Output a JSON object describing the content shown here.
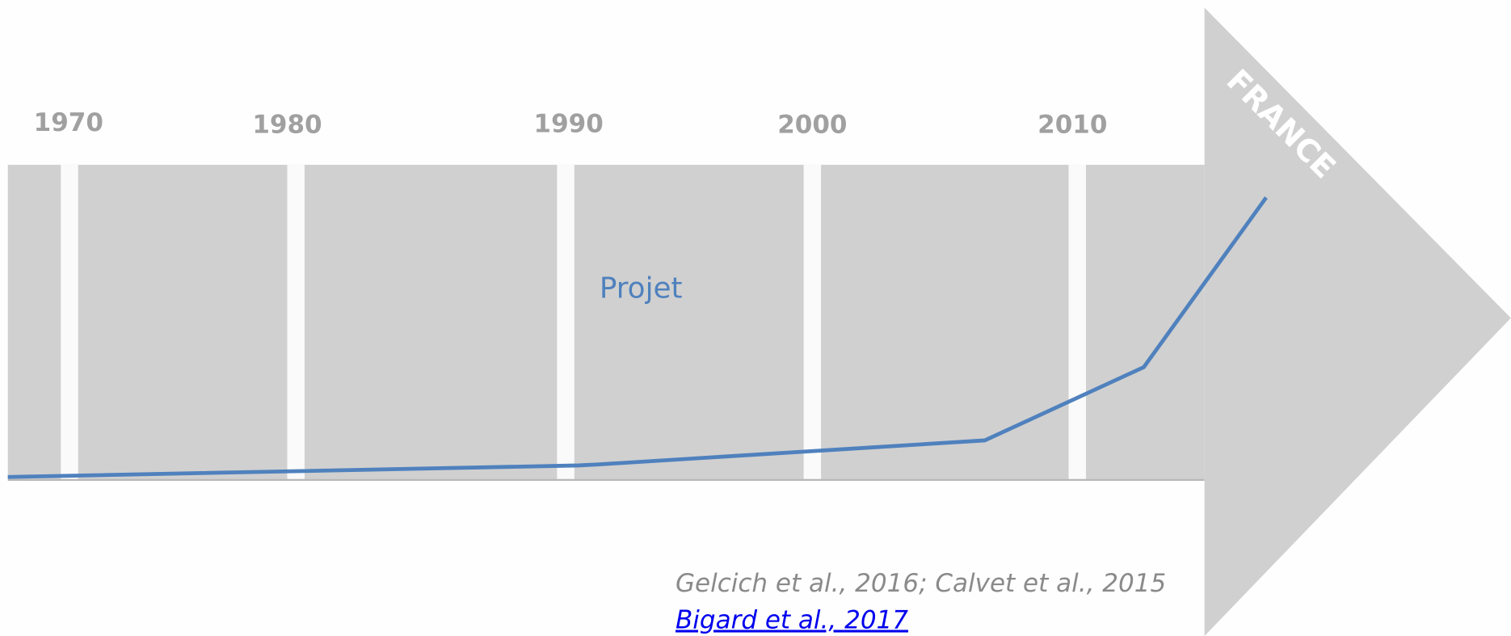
{
  "timeline": {
    "years": [
      "1970",
      "1980",
      "1990",
      "2000",
      "2010"
    ],
    "region": "FRANCE",
    "curve_label": "Projet"
  },
  "references": {
    "text": "Gelcich et al., 2016; Calvet et al., 2015",
    "link": "Bigard et al., 2017"
  }
}
